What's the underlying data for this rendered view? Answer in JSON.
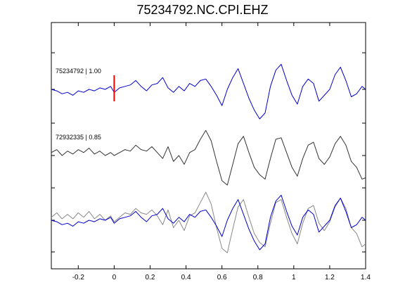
{
  "chart_data": {
    "type": "line",
    "title": "75234792.NC.CPI.EHZ",
    "xlabel": "",
    "ylabel": "",
    "xlim": [
      -0.35,
      1.4
    ],
    "x_ticks": [
      "-0.2",
      "0",
      "0.2",
      "0.4",
      "0.6",
      "0.8",
      "1",
      "1.2",
      "1.4"
    ],
    "x_tick_values": [
      -0.2,
      0,
      0.2,
      0.4,
      0.6,
      0.8,
      1.0,
      1.2,
      1.4
    ],
    "grid": false,
    "pick_time": 0,
    "pick_color": "#ff0000",
    "series": [
      {
        "name": "75234792 | 1.00",
        "color": "#0000cc",
        "offset": 2,
        "x": [
          -0.35,
          -0.32,
          -0.29,
          -0.26,
          -0.23,
          -0.2,
          -0.17,
          -0.14,
          -0.11,
          -0.08,
          -0.05,
          -0.02,
          0,
          0.03,
          0.06,
          0.09,
          0.12,
          0.15,
          0.18,
          0.21,
          0.24,
          0.27,
          0.3,
          0.33,
          0.36,
          0.39,
          0.42,
          0.45,
          0.48,
          0.51,
          0.54,
          0.57,
          0.6,
          0.63,
          0.66,
          0.69,
          0.72,
          0.75,
          0.78,
          0.81,
          0.84,
          0.87,
          0.9,
          0.93,
          0.96,
          0.99,
          1.02,
          1.05,
          1.08,
          1.11,
          1.14,
          1.17,
          1.2,
          1.23,
          1.26,
          1.29,
          1.32,
          1.35,
          1.38,
          1.4
        ],
        "y": [
          0.0,
          -0.05,
          -0.15,
          -0.1,
          -0.2,
          -0.05,
          -0.1,
          0.0,
          -0.05,
          0.05,
          0.0,
          0.1,
          -0.1,
          0.05,
          0.1,
          0.15,
          0.3,
          0.1,
          -0.05,
          0.15,
          0.2,
          0.4,
          0.05,
          -0.1,
          0.1,
          -0.05,
          0.2,
          0.1,
          0.3,
          0.35,
          0.1,
          -0.2,
          -0.55,
          0.0,
          0.4,
          0.7,
          0.2,
          -0.3,
          -0.7,
          -1.0,
          -0.8,
          0.1,
          0.65,
          0.85,
          0.3,
          -0.2,
          -0.5,
          0.1,
          0.35,
          0.2,
          -0.4,
          -0.2,
          0.0,
          0.5,
          0.75,
          0.3,
          -0.25,
          -0.15,
          0.1,
          0.0
        ]
      },
      {
        "name": "72932335 | 0.85",
        "color": "#333333",
        "offset": 1,
        "x": [
          -0.35,
          -0.32,
          -0.29,
          -0.26,
          -0.23,
          -0.2,
          -0.17,
          -0.14,
          -0.11,
          -0.08,
          -0.05,
          -0.02,
          0,
          0.03,
          0.06,
          0.09,
          0.12,
          0.15,
          0.18,
          0.21,
          0.24,
          0.27,
          0.3,
          0.33,
          0.36,
          0.39,
          0.42,
          0.45,
          0.48,
          0.51,
          0.54,
          0.57,
          0.6,
          0.63,
          0.66,
          0.69,
          0.72,
          0.75,
          0.78,
          0.81,
          0.84,
          0.87,
          0.9,
          0.93,
          0.96,
          0.99,
          1.02,
          1.05,
          1.08,
          1.11,
          1.14,
          1.17,
          1.2,
          1.23,
          1.26,
          1.29,
          1.32,
          1.35,
          1.38,
          1.4
        ],
        "y": [
          0.1,
          0.2,
          0.0,
          0.15,
          0.05,
          0.2,
          0.1,
          0.25,
          0.05,
          0.15,
          0.0,
          0.1,
          0.0,
          0.1,
          0.2,
          0.15,
          0.35,
          0.2,
          0.15,
          0.3,
          0.1,
          -0.1,
          0.3,
          -0.2,
          0.0,
          -0.3,
          0.1,
          0.2,
          0.55,
          0.85,
          0.5,
          -0.2,
          -0.85,
          -1.0,
          -0.3,
          0.4,
          0.65,
          0.1,
          -0.4,
          -0.65,
          -0.8,
          -0.1,
          0.55,
          0.6,
          0.1,
          -0.4,
          -0.7,
          -0.1,
          0.35,
          0.45,
          -0.1,
          -0.3,
          -0.05,
          0.4,
          0.65,
          0.35,
          -0.2,
          -0.4,
          -0.8,
          -0.75
        ]
      },
      {
        "name": "",
        "color": "#888888",
        "offset": 0,
        "x": [
          -0.35,
          -0.32,
          -0.29,
          -0.26,
          -0.23,
          -0.2,
          -0.17,
          -0.14,
          -0.11,
          -0.08,
          -0.05,
          -0.02,
          0,
          0.03,
          0.06,
          0.09,
          0.12,
          0.15,
          0.18,
          0.21,
          0.24,
          0.27,
          0.3,
          0.33,
          0.36,
          0.39,
          0.42,
          0.45,
          0.48,
          0.51,
          0.54,
          0.57,
          0.6,
          0.63,
          0.66,
          0.69,
          0.72,
          0.75,
          0.78,
          0.81,
          0.84,
          0.87,
          0.9,
          0.93,
          0.96,
          0.99,
          1.02,
          1.05,
          1.08,
          1.11,
          1.14,
          1.17,
          1.2,
          1.23,
          1.26,
          1.29,
          1.32,
          1.35,
          1.38,
          1.4
        ],
        "y": [
          0.1,
          0.25,
          0.05,
          0.2,
          0.05,
          0.25,
          0.1,
          0.3,
          0.05,
          0.2,
          0.0,
          0.15,
          -0.05,
          0.1,
          0.25,
          0.2,
          0.4,
          0.25,
          0.2,
          0.35,
          0.15,
          -0.15,
          0.35,
          -0.25,
          0.0,
          -0.35,
          0.15,
          0.25,
          0.6,
          0.95,
          0.55,
          -0.25,
          -0.95,
          -1.1,
          -0.3,
          0.45,
          0.7,
          0.1,
          -0.45,
          -0.75,
          -0.9,
          -0.1,
          0.6,
          0.7,
          0.1,
          -0.45,
          -0.8,
          -0.1,
          0.4,
          0.5,
          -0.1,
          -0.35,
          -0.05,
          0.45,
          0.75,
          0.4,
          -0.25,
          -0.45,
          -0.9,
          -0.8
        ]
      },
      {
        "name": "",
        "color": "#0000cc",
        "offset": 0,
        "x": [
          -0.35,
          -0.32,
          -0.29,
          -0.26,
          -0.23,
          -0.2,
          -0.17,
          -0.14,
          -0.11,
          -0.08,
          -0.05,
          -0.02,
          0,
          0.03,
          0.06,
          0.09,
          0.12,
          0.15,
          0.18,
          0.21,
          0.24,
          0.27,
          0.3,
          0.33,
          0.36,
          0.39,
          0.42,
          0.45,
          0.48,
          0.51,
          0.54,
          0.57,
          0.6,
          0.63,
          0.66,
          0.69,
          0.72,
          0.75,
          0.78,
          0.81,
          0.84,
          0.87,
          0.9,
          0.93,
          0.96,
          0.99,
          1.02,
          1.05,
          1.08,
          1.11,
          1.14,
          1.17,
          1.2,
          1.23,
          1.26,
          1.29,
          1.32,
          1.35,
          1.38,
          1.4
        ],
        "y": [
          0.0,
          -0.05,
          -0.15,
          -0.1,
          -0.2,
          -0.05,
          -0.1,
          0.0,
          -0.05,
          0.05,
          0.0,
          0.1,
          -0.1,
          0.05,
          0.1,
          0.15,
          0.3,
          0.1,
          -0.05,
          0.15,
          0.2,
          0.4,
          0.05,
          -0.1,
          0.1,
          -0.05,
          0.2,
          0.1,
          0.3,
          0.35,
          0.1,
          -0.2,
          -0.55,
          0.0,
          0.4,
          0.7,
          0.2,
          -0.3,
          -0.7,
          -1.0,
          -0.8,
          0.1,
          0.65,
          0.85,
          0.3,
          -0.2,
          -0.5,
          0.1,
          0.35,
          0.2,
          -0.4,
          -0.2,
          0.0,
          0.5,
          0.75,
          0.3,
          -0.25,
          -0.15,
          0.1,
          0.0
        ]
      }
    ]
  }
}
